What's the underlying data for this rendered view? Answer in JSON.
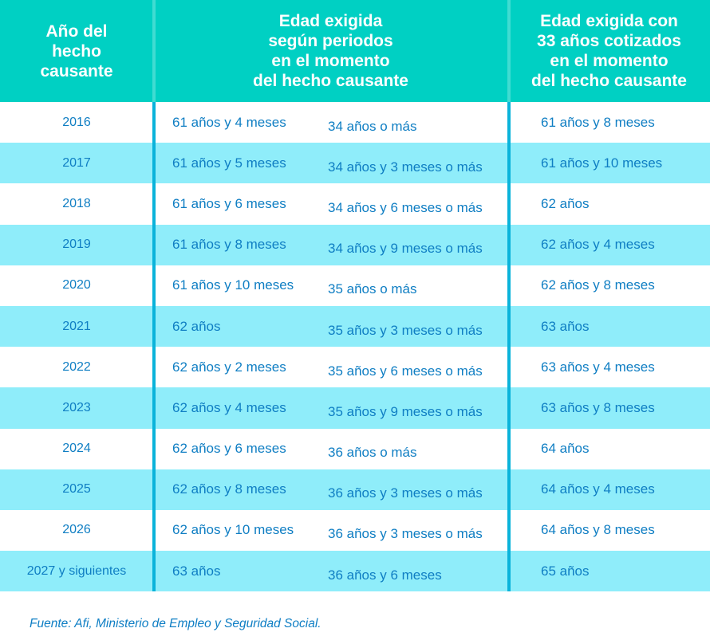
{
  "colors": {
    "header_bg": "#00d0c3",
    "header_text": "#ffffff",
    "row_bg": "#ffffff",
    "row_alt_bg": "#8fedfa",
    "column_divider": "#0ab3da",
    "text_blue": "#0f7ec3"
  },
  "header": {
    "year_col": "Año del\nhecho\ncausante",
    "periods_col": "Edad exigida\nsegún periodos\nen el momento\ndel hecho causante",
    "contrib33_col": "Edad exigida con\n33 años cotizados\nen el momento\ndel hecho causante"
  },
  "rows": [
    {
      "year": "2016",
      "age_by_periods": "61 años y 4 meses",
      "periods": "34 años o más",
      "age_33": "61 años y 8 meses"
    },
    {
      "year": "2017",
      "age_by_periods": "61 años y 5 meses",
      "periods": "34 años y 3 meses o más",
      "age_33": "61 años y 10 meses"
    },
    {
      "year": "2018",
      "age_by_periods": "61 años y 6 meses",
      "periods": "34 años y 6 meses o más",
      "age_33": "62 años"
    },
    {
      "year": "2019",
      "age_by_periods": "61 años y 8 meses",
      "periods": "34 años y 9 meses o más",
      "age_33": "62 años y 4 meses"
    },
    {
      "year": "2020",
      "age_by_periods": "61 años y 10 meses",
      "periods": "35 años o más",
      "age_33": "62 años y 8 meses"
    },
    {
      "year": "2021",
      "age_by_periods": "62 años",
      "periods": "35 años y 3 meses o más",
      "age_33": "63 años"
    },
    {
      "year": "2022",
      "age_by_periods": "62 años y 2 meses",
      "periods": "35 años y 6 meses o más",
      "age_33": "63 años y 4 meses"
    },
    {
      "year": "2023",
      "age_by_periods": "62 años y 4 meses",
      "periods": "35 años y 9 meses o más",
      "age_33": "63 años y 8 meses"
    },
    {
      "year": "2024",
      "age_by_periods": "62 años y 6 meses",
      "periods": "36 años o más",
      "age_33": "64 años"
    },
    {
      "year": "2025",
      "age_by_periods": "62 años y 8 meses",
      "periods": "36 años y 3 meses o más",
      "age_33": "64 años y 4 meses"
    },
    {
      "year": "2026",
      "age_by_periods": "62 años y 10 meses",
      "periods": "36 años y 3 meses o más",
      "age_33": "64 años y 8 meses"
    },
    {
      "year": "2027 y siguientes",
      "age_by_periods": "63 años",
      "periods": "36 años y 6 meses",
      "age_33": "65 años"
    }
  ],
  "footer": {
    "source": "Fuente: Afi, Ministerio de Empleo y Seguridad Social."
  },
  "chart_data": {
    "type": "table",
    "title": "",
    "columns": [
      "Año del hecho causante",
      "Edad exigida según periodos en el momento del hecho causante (edad)",
      "Edad exigida según periodos en el momento del hecho causante (periodo cotizado)",
      "Edad exigida con 33 años cotizados en el momento del hecho causante"
    ],
    "rows": [
      [
        "2016",
        "61 años y 4 meses",
        "34 años o más",
        "61 años y 8 meses"
      ],
      [
        "2017",
        "61 años y 5 meses",
        "34 años y 3 meses o más",
        "61 años y 10 meses"
      ],
      [
        "2018",
        "61 años y 6 meses",
        "34 años y 6 meses o más",
        "62 años"
      ],
      [
        "2019",
        "61 años y 8 meses",
        "34 años y 9 meses o más",
        "62 años y 4 meses"
      ],
      [
        "2020",
        "61 años y 10 meses",
        "35 años o más",
        "62 años y 8 meses"
      ],
      [
        "2021",
        "62 años",
        "35 años y 3 meses o más",
        "63 años"
      ],
      [
        "2022",
        "62 años y 2 meses",
        "35 años y 6 meses o más",
        "63 años y 4 meses"
      ],
      [
        "2023",
        "62 años y 4 meses",
        "35 años y 9 meses o más",
        "63 años y 8 meses"
      ],
      [
        "2024",
        "62 años y 6 meses",
        "36 años o más",
        "64 años"
      ],
      [
        "2025",
        "62 años y 8 meses",
        "36 años y 3 meses o más",
        "64 años y 4 meses"
      ],
      [
        "2026",
        "62 años y 10 meses",
        "36 años y 3 meses o más",
        "64 años y 8 meses"
      ],
      [
        "2027 y siguientes",
        "63 años",
        "36 años y 6 meses",
        "65 años"
      ]
    ],
    "annotations": [
      "Fuente: Afi, Ministerio de Empleo y Seguridad Social."
    ]
  }
}
